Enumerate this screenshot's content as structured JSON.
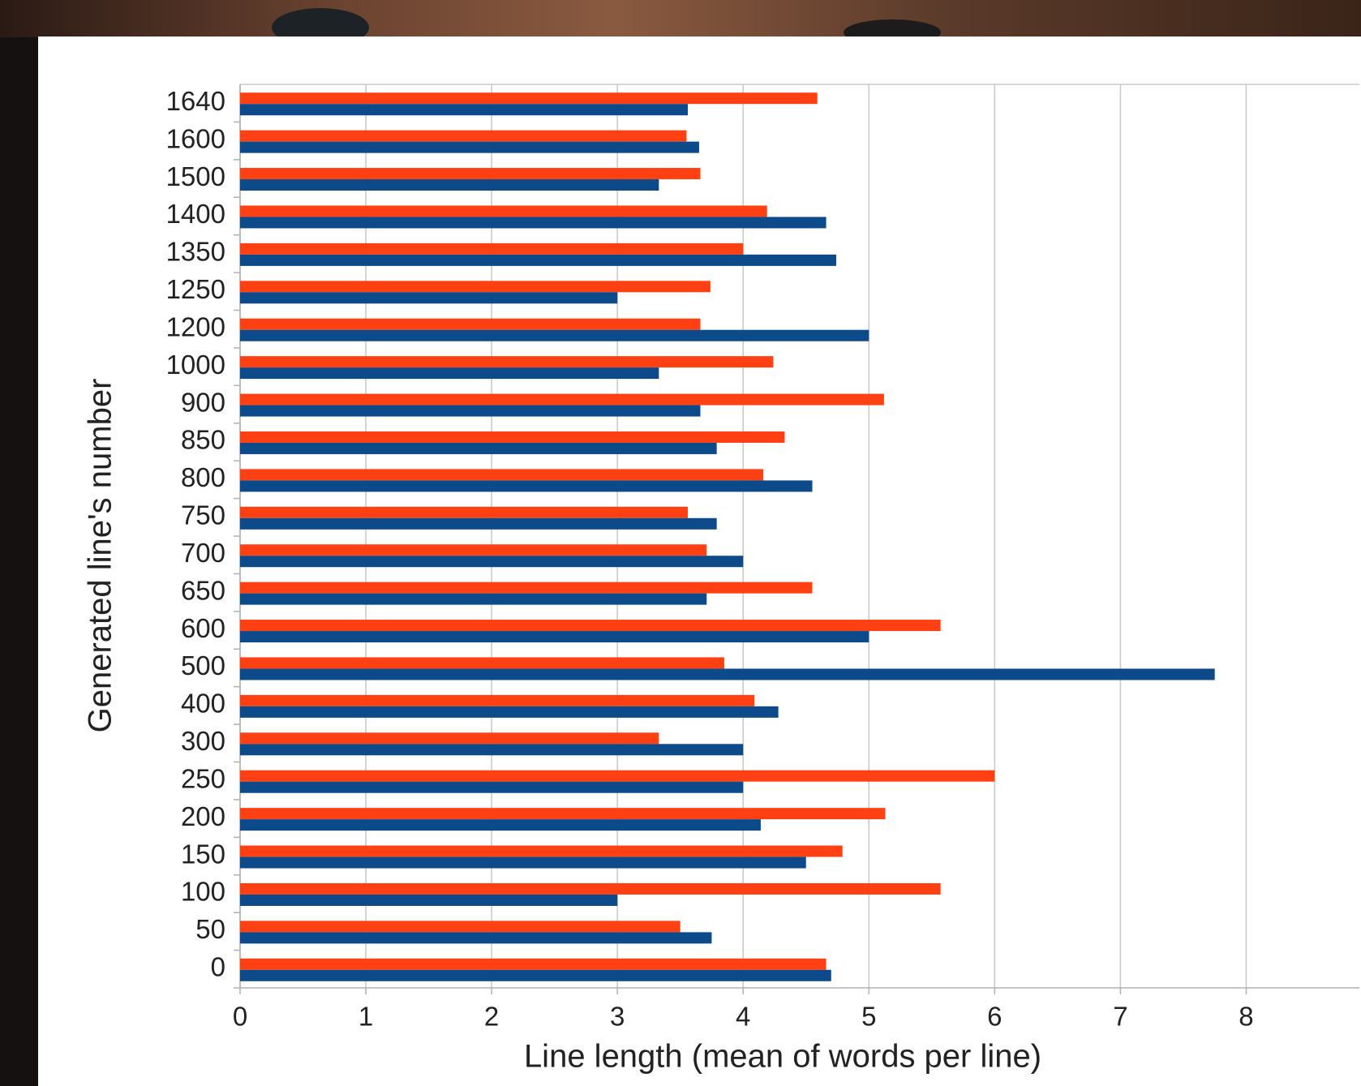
{
  "chart_data": {
    "type": "barh",
    "xlabel": "Line length (mean of words per line)",
    "ylabel": "Generated line's number",
    "categories": [
      "0",
      "50",
      "100",
      "150",
      "200",
      "250",
      "300",
      "400",
      "500",
      "600",
      "650",
      "700",
      "750",
      "800",
      "850",
      "900",
      "1000",
      "1200",
      "1250",
      "1350",
      "1400",
      "1500",
      "1600",
      "1640"
    ],
    "series": [
      {
        "color": "#ff4013",
        "values": [
          4.66,
          3.5,
          5.57,
          4.79,
          5.13,
          6.0,
          3.33,
          4.09,
          3.85,
          5.57,
          4.55,
          3.71,
          3.56,
          4.16,
          4.33,
          5.12,
          4.24,
          3.66,
          3.74,
          4.0,
          4.19,
          3.66,
          3.55,
          4.59
        ]
      },
      {
        "color": "#0c4a8a",
        "values": [
          4.7,
          3.75,
          3.0,
          4.5,
          4.14,
          4.0,
          4.0,
          4.28,
          7.75,
          5.0,
          3.71,
          4.0,
          3.79,
          4.55,
          3.79,
          3.66,
          3.33,
          5.0,
          3.0,
          4.74,
          4.66,
          3.33,
          3.65,
          3.56
        ]
      }
    ],
    "xlim": [
      0,
      8.9
    ],
    "xticks": [
      0,
      1,
      2,
      3,
      4,
      5,
      6,
      7,
      8
    ],
    "grid": true
  }
}
